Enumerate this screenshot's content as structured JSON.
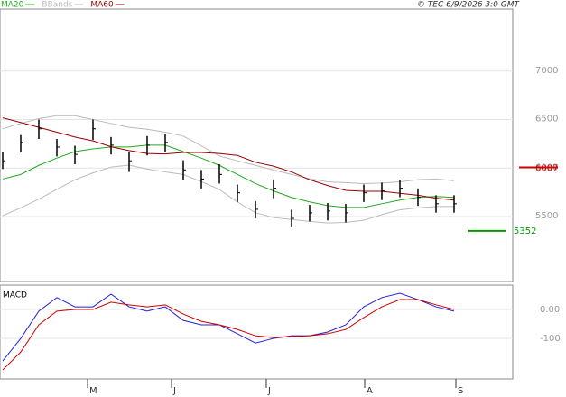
{
  "chart_data": {
    "type": "ohlc",
    "copyright": "© TEC 6/9/2026 3:0 GMT",
    "x": [
      0,
      1,
      2,
      3,
      4,
      5,
      6,
      7,
      8,
      9,
      10,
      11,
      12,
      13,
      14,
      15,
      16,
      17,
      18,
      19,
      20,
      21,
      22,
      23,
      24,
      25
    ],
    "xlim": [
      -0.15,
      28.25
    ],
    "xticks": [
      {
        "value": 4.7,
        "label": "M"
      },
      {
        "value": 9.35,
        "label": "J"
      },
      {
        "value": 14.6,
        "label": "J"
      },
      {
        "value": 20.05,
        "label": "A"
      },
      {
        "value": 25.1,
        "label": "S"
      }
    ],
    "ylim": [
      4830,
      7640
    ],
    "yticks": [
      7000,
      6500,
      6000,
      5500
    ],
    "grid": true,
    "bar_color": "#000000",
    "high": [
      6170,
      6340,
      6500,
      6300,
      6230,
      6500,
      6320,
      6170,
      6330,
      6350,
      6080,
      5980,
      6040,
      5830,
      5660,
      5880,
      5570,
      5620,
      5640,
      5630,
      5830,
      5850,
      5880,
      5790,
      5720,
      5720
    ],
    "low": [
      5990,
      6160,
      6300,
      6120,
      6040,
      6290,
      6140,
      5960,
      6130,
      6170,
      5880,
      5790,
      5840,
      5650,
      5480,
      5690,
      5390,
      5450,
      5460,
      5440,
      5650,
      5670,
      5700,
      5610,
      5540,
      5540
    ],
    "close": [
      6075,
      6264,
      6405,
      6217,
      6141,
      6405,
      6236,
      6075,
      6236,
      6264,
      5981,
      5887,
      5934,
      5745,
      5575,
      5792,
      5481,
      5538,
      5557,
      5538,
      5745,
      5764,
      5792,
      5698,
      5632,
      5632
    ],
    "series": [
      {
        "name": "MA20",
        "color": "#22aa22",
        "values": [
          5887,
          5934,
          6028,
          6103,
          6170,
          6198,
          6217,
          6217,
          6236,
          6236,
          6170,
          6103,
          6028,
          5934,
          5840,
          5764,
          5698,
          5651,
          5613,
          5594,
          5594,
          5632,
          5670,
          5698,
          5707,
          5698
        ]
      },
      {
        "name": "BBands",
        "color": "#bbbbbb",
        "values": [
          6405,
          6460,
          6510,
          6540,
          6540,
          6500,
          6460,
          6420,
          6400,
          6370,
          6330,
          6230,
          6125,
          6075,
          6028,
          5980,
          5934,
          5890,
          5858,
          5850,
          5840,
          5845,
          5858,
          5880,
          5887,
          5870
        ],
        "lower": [
          5509,
          5590,
          5680,
          5780,
          5880,
          5950,
          6010,
          6030,
          5990,
          5960,
          5934,
          5860,
          5780,
          5650,
          5540,
          5490,
          5470,
          5450,
          5434,
          5440,
          5462,
          5520,
          5570,
          5590,
          5604,
          5604
        ]
      },
      {
        "name": "MA60",
        "color": "#990000",
        "values": [
          6518,
          6470,
          6420,
          6370,
          6320,
          6280,
          6220,
          6180,
          6150,
          6145,
          6160,
          6160,
          6150,
          6130,
          6060,
          6020,
          5960,
          5880,
          5820,
          5770,
          5760,
          5760,
          5740,
          5720,
          5690,
          5670
        ]
      }
    ],
    "levels": [
      {
        "value": 6007,
        "color": "#cc0000"
      },
      {
        "value": 5352,
        "color": "#009900"
      }
    ],
    "macd": {
      "title": "MACD",
      "ylim": [
        -240,
        84
      ],
      "yticks": [
        {
          "value": 0,
          "label": "0.00"
        },
        -100
      ],
      "series": [
        {
          "color": "#2222dd",
          "values": [
            -178,
            -100,
            -6,
            41,
            9,
            9,
            53,
            9,
            -6,
            9,
            -38,
            -53,
            -53,
            -84,
            -116,
            -100,
            -91,
            -91,
            -78,
            -53,
            9,
            41,
            56,
            34,
            9,
            -6
          ]
        },
        {
          "color": "#cc0000",
          "values": [
            -209,
            -147,
            -53,
            -6,
            0,
            0,
            25,
            16,
            9,
            16,
            -16,
            -41,
            -53,
            -69,
            -91,
            -97,
            -94,
            -91,
            -84,
            -69,
            -28,
            9,
            34,
            34,
            16,
            0
          ]
        }
      ]
    }
  }
}
